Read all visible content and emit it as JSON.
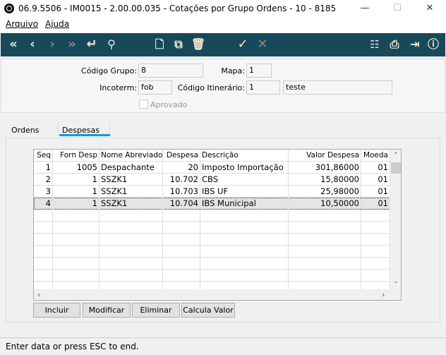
{
  "window": {
    "title": "06.9.5506 - IM0015 - 2.00.00.035 - Cotações por Grupo Ordens - 10 - 8185",
    "minimize": "—",
    "maximize": "☐",
    "close": "✕"
  },
  "menu": [
    "Arquivo",
    "Ajuda"
  ],
  "toolbar": {
    "icons": [
      "first-icon",
      "previous-icon",
      "next-icon",
      "last-icon",
      "enter-icon",
      "search-icon",
      "new-icon",
      "copy-icon",
      "delete-icon",
      "confirm-icon",
      "cancel-icon",
      "structure-icon",
      "print-icon",
      "exit-icon",
      "help-icon"
    ],
    "accent": "#17495b"
  },
  "form": {
    "codigo_grupo_label": "Código Grupo:",
    "codigo_grupo": "8",
    "mapa_label": "Mapa:",
    "mapa": "1",
    "incoterm_label": "Incoterm:",
    "incoterm": "fob",
    "itinerario_label": "Código Itinerário:",
    "itinerario": "1",
    "itinerario_desc": "teste",
    "aprovado_label": "Aprovado",
    "aprovado": false
  },
  "tabs": {
    "items": [
      "Ordens",
      "Despesas"
    ],
    "active": "Despesas",
    "accent": "#0d9be0"
  },
  "grid": {
    "columns": [
      "Seq",
      "Forn Desp",
      "Nome Abreviado",
      "Despesa",
      "Descrição",
      "Valor Despesa",
      "Moeda"
    ],
    "rows": [
      [
        "1",
        "1005",
        "Despachante",
        "20",
        "Imposto Importação",
        "301,86000",
        "01"
      ],
      [
        "2",
        "1",
        "SSZK1",
        "10.702",
        "CBS",
        "15,80000",
        "01"
      ],
      [
        "3",
        "1",
        "SSZK1",
        "10.703",
        "IBS UF",
        "25,98000",
        "01"
      ],
      [
        "4",
        "1",
        "SSZK1",
        "10.704",
        "IBS Municipal",
        "10,50000",
        "01"
      ]
    ],
    "selected_row": 3
  },
  "buttons": {
    "incluir": "Incluir",
    "modificar": "Modificar",
    "eliminar": "Eliminar",
    "calcula": "Calcula Valor"
  },
  "status": "Enter data or press ESC to end."
}
